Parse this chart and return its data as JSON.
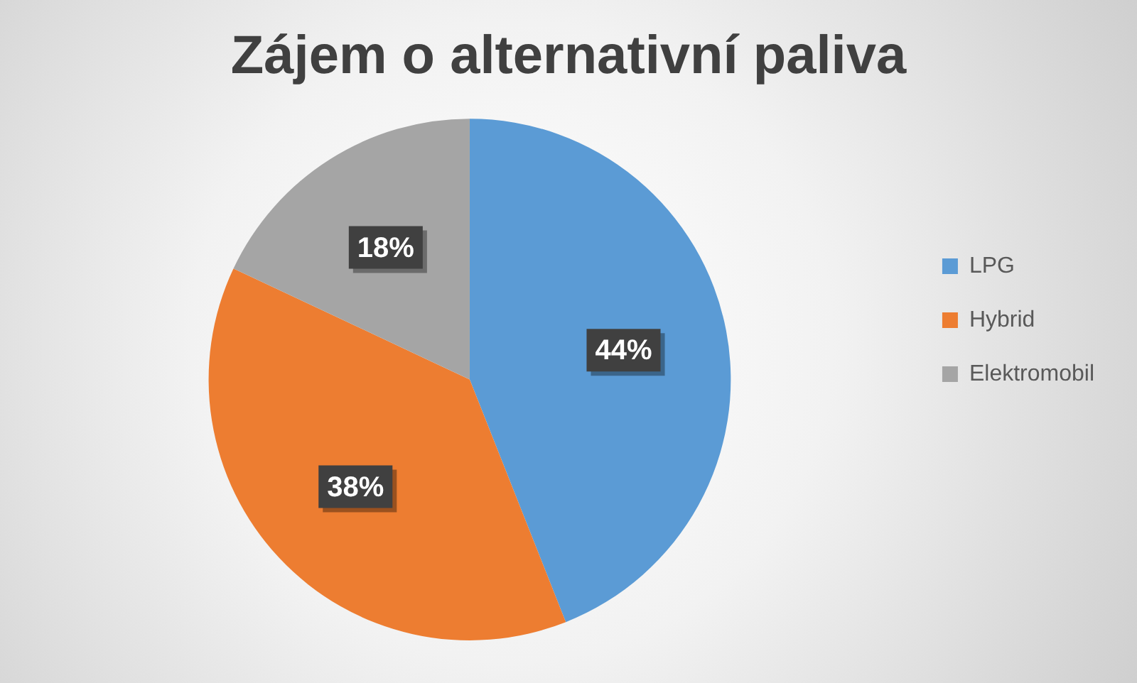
{
  "chart_data": {
    "type": "pie",
    "title": "Zájem o alternativní paliva",
    "categories": [
      "LPG",
      "Hybrid",
      "Elektromobil"
    ],
    "values": [
      44,
      38,
      18
    ],
    "colors": [
      "#5b9bd5",
      "#ed7d31",
      "#a5a5a5"
    ],
    "value_labels": [
      "44%",
      "38%",
      "18%"
    ],
    "legend": "right"
  }
}
